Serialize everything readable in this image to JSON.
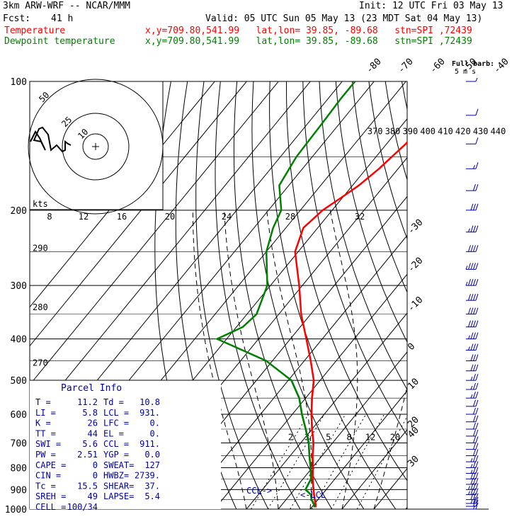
{
  "header": {
    "model": "3km ARW-WRF -- NCAR/MMM",
    "init": "Init: 12 UTC Fri 03 May 13",
    "fcst_label": "Fcst:",
    "fcst_value": "41 h",
    "valid": "Valid: 05 UTC Sun 05 May 13 (23 MDT Sat 04 May 13)",
    "temp_label": "Temperature",
    "dew_label": "Dewpoint temperature",
    "temp_info": "x,y=709.80,541.99   lat,lon= 39.85, -89.68   stn=SPI ,72439",
    "dew_info": "x,y=709.80,541.99   lat,lon= 39.85, -89.68   stn=SPI ,72439"
  },
  "colors": {
    "temperature": "#ff0000",
    "dewpoint": "#008000",
    "wind": "#0000a0",
    "lines": "#000000"
  },
  "chart_data": {
    "type": "line",
    "ylabel": "",
    "xlabel": "",
    "y_scale": "log",
    "pressure_ticks": [
      "100",
      "200",
      "300",
      "400",
      "500",
      "600",
      "700",
      "800",
      "900",
      "1000"
    ],
    "temp_top_labels": [
      "-80",
      "-70",
      "-60",
      "-50",
      "-40"
    ],
    "temp_right_labels": [
      "-30",
      "-20",
      "-10",
      "0",
      "10",
      "20",
      "30",
      "40"
    ],
    "theta_labels": [
      "370",
      "380",
      "390",
      "400",
      "410",
      "420",
      "430",
      "440"
    ],
    "theta_side_labels": [
      "290",
      "280",
      "270"
    ],
    "mixing_labels": [
      "2",
      "3",
      "5",
      "8",
      "12",
      "20"
    ],
    "series": [
      {
        "name": "Temperature",
        "p": [
          990,
          975,
          950,
          925,
          900,
          850,
          800,
          750,
          700,
          650,
          600,
          550,
          500,
          450,
          400,
          350,
          300,
          250,
          220,
          200,
          185,
          175,
          160,
          140,
          125,
          110,
          100
        ],
        "t": [
          11.2,
          10.5,
          9,
          7.5,
          6,
          3,
          0.2,
          -3,
          -6,
          -10,
          -14,
          -18,
          -22,
          -28,
          -35,
          -43,
          -51,
          -61,
          -64.5,
          -63,
          -60,
          -58,
          -56,
          -54,
          -53.5,
          -52,
          -51
        ]
      },
      {
        "name": "Dewpoint temperature",
        "p": [
          990,
          975,
          950,
          925,
          900,
          850,
          800,
          750,
          700,
          650,
          600,
          550,
          500,
          450,
          400,
          375,
          350,
          300,
          250,
          220,
          200,
          175,
          150,
          125,
          110,
          100
        ],
        "t": [
          10.8,
          10,
          8,
          6.5,
          3.5,
          2.5,
          -0.5,
          -4,
          -7.5,
          -12,
          -17,
          -22,
          -29,
          -42,
          -63,
          -58,
          -57,
          -61,
          -70,
          -74,
          -76,
          -83,
          -85,
          -85.5,
          -86,
          -86
        ]
      }
    ],
    "hodograph": {
      "units": "kts",
      "ring_labels": [
        "50",
        "25",
        "10"
      ],
      "axis_labels": [
        "8",
        "12",
        "16",
        "20",
        "24",
        "28",
        "32"
      ]
    },
    "parcel_info": {
      "title": "Parcel Info",
      "rows": [
        [
          "T  =",
          "11.2",
          "Td =",
          "10.8"
        ],
        [
          "LI =",
          "5.8",
          "LCL =",
          "931."
        ],
        [
          "K  =",
          "26",
          "LFC =",
          "0."
        ],
        [
          "TT =",
          "44",
          "EL  =",
          "0."
        ],
        [
          "SWI =",
          "5.6",
          "CCL =",
          "911."
        ],
        [
          "PW =",
          "2.51",
          "YGP =",
          "0.0"
        ],
        [
          "CAPE =",
          "0",
          "SWEAT=",
          "127"
        ],
        [
          "CIN =",
          "0",
          "HWBZ=",
          "2739."
        ],
        [
          "Tc =",
          "15.5",
          "SHEAR=",
          "37."
        ],
        [
          "SREH =",
          "49",
          "LAPSE=",
          "5.4"
        ],
        [
          "CELL =",
          "100/34",
          "",
          ""
        ]
      ]
    },
    "annotations": {
      "ccl": "CCL->",
      "lcl": "<-LCL"
    },
    "wind": {
      "legend": "Full barb:",
      "legend_units": "5 m s",
      "p": [
        1000,
        985,
        970,
        950,
        925,
        900,
        875,
        850,
        825,
        800,
        775,
        750,
        725,
        700,
        675,
        650,
        625,
        600,
        575,
        550,
        525,
        500,
        475,
        450,
        425,
        400,
        375,
        350,
        325,
        300,
        275,
        250,
        225,
        200,
        180,
        160,
        140,
        120,
        100
      ],
      "speed_kt": [
        15,
        20,
        25,
        30,
        35,
        35,
        30,
        30,
        25,
        25,
        25,
        20,
        20,
        20,
        20,
        20,
        20,
        20,
        20,
        25,
        25,
        25,
        30,
        30,
        35,
        35,
        40,
        40,
        40,
        45,
        45,
        40,
        35,
        30,
        20,
        15,
        10,
        10,
        5
      ]
    }
  }
}
